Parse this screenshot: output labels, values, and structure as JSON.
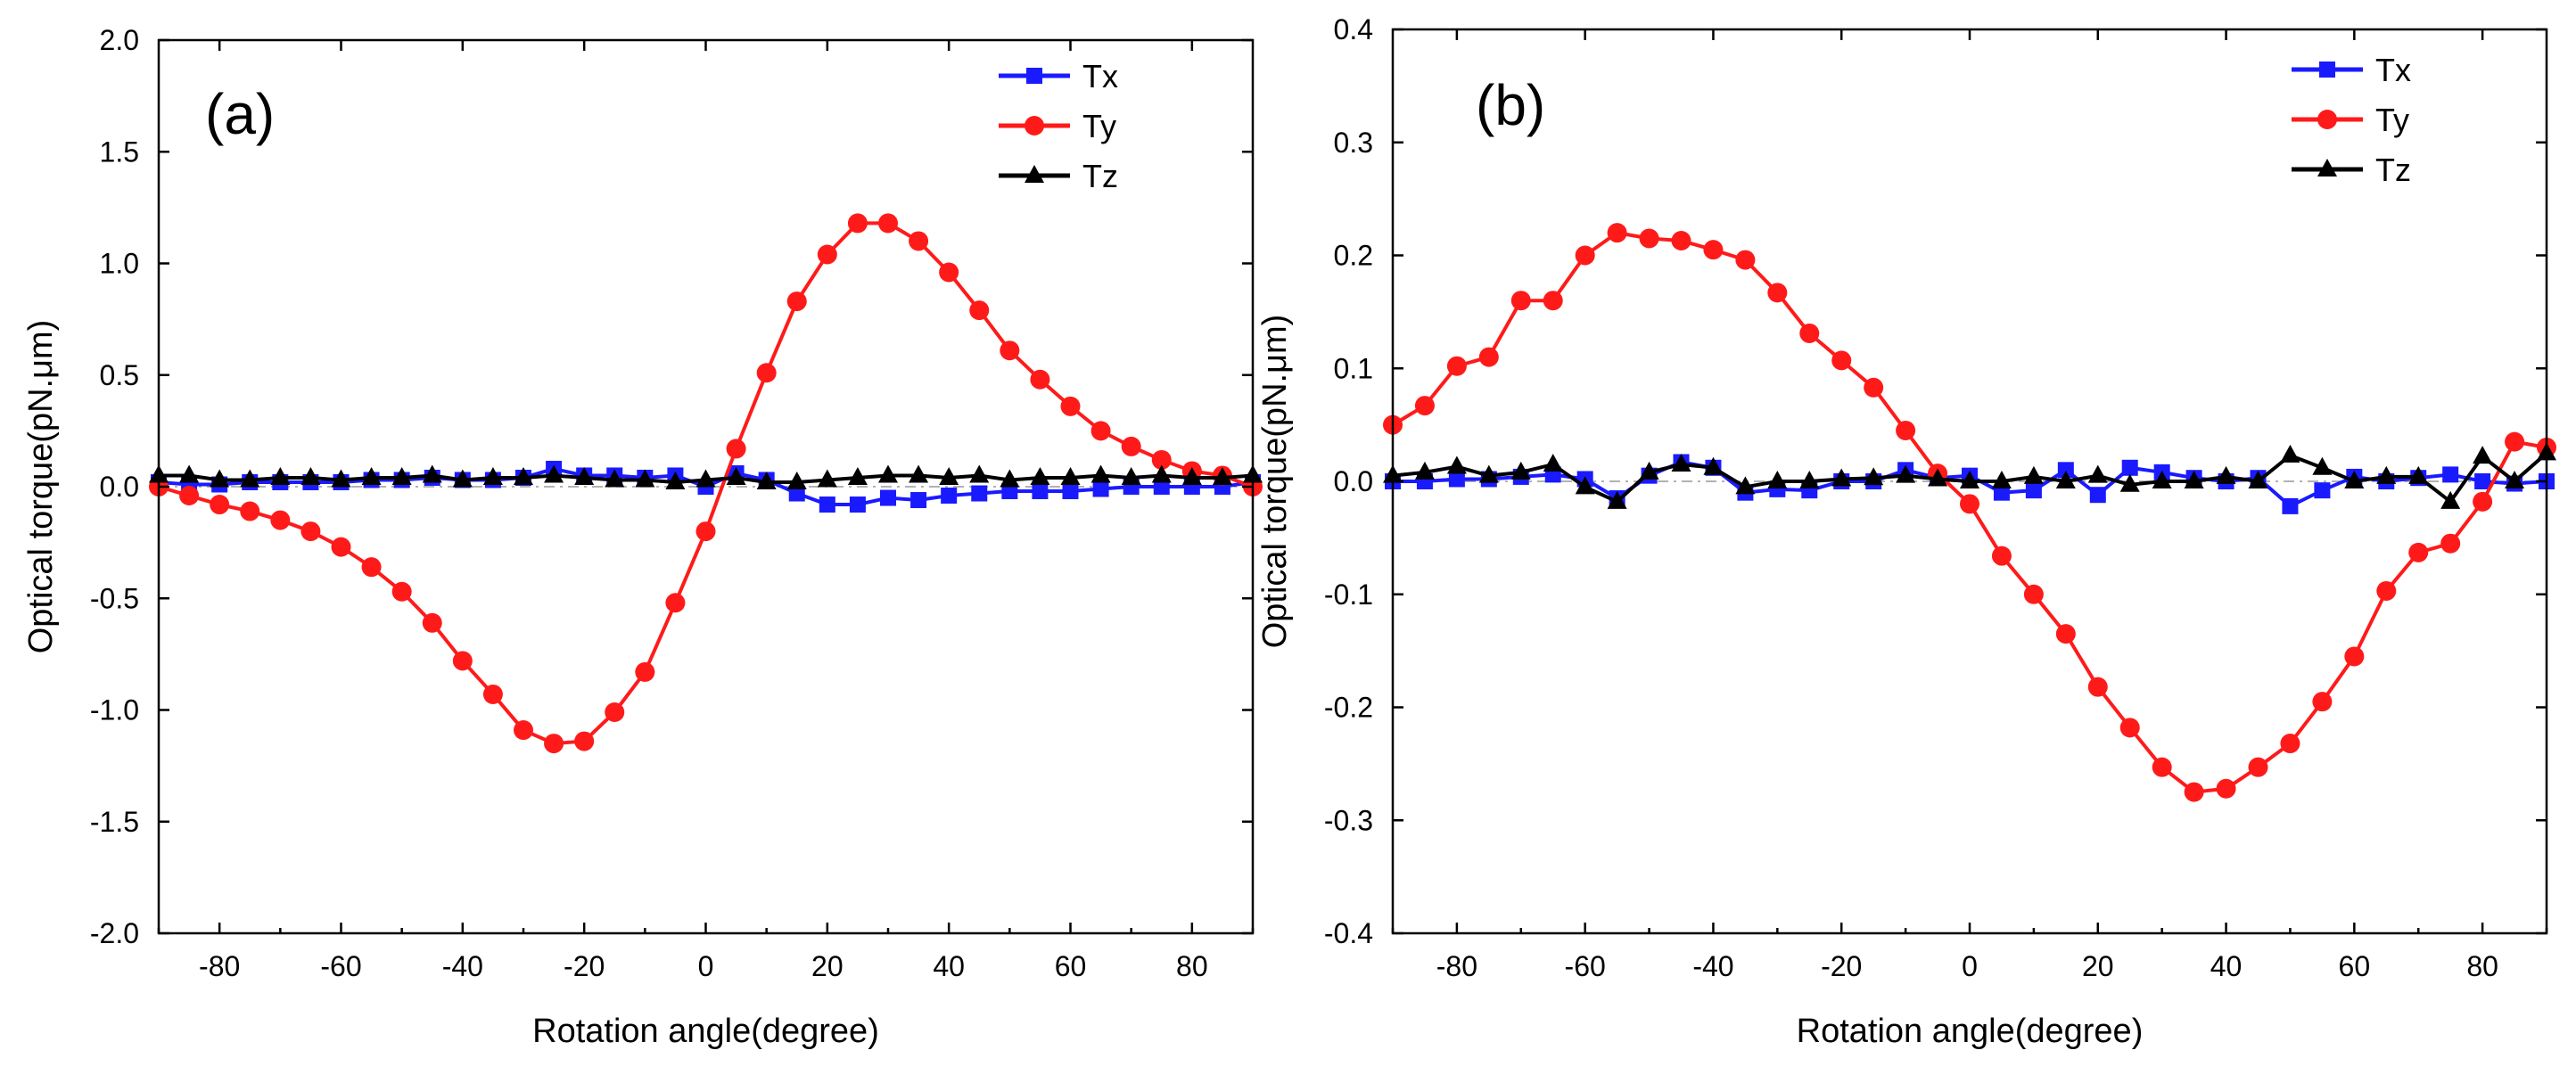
{
  "chart_data": [
    {
      "type": "line",
      "panel_label": "(a)",
      "xlabel": "Rotation angle(degree)",
      "ylabel": "Optical torque(pN.μm)",
      "xlim": [
        -90,
        90
      ],
      "ylim": [
        -2.0,
        2.0
      ],
      "xticks": [
        -80,
        -60,
        -40,
        -20,
        0,
        20,
        40,
        60,
        80
      ],
      "yticks": [
        -2.0,
        -1.5,
        -1.0,
        -0.5,
        0.0,
        0.5,
        1.0,
        1.5,
        2.0
      ],
      "ytick_labels": [
        "-2.0",
        "-1.5",
        "-1.0",
        "-0.5",
        "0.0",
        "0.5",
        "1.0",
        "1.5",
        "2.0"
      ],
      "legend_position": "top-right",
      "x": [
        -90,
        -85,
        -80,
        -75,
        -70,
        -65,
        -60,
        -55,
        -50,
        -45,
        -40,
        -35,
        -30,
        -25,
        -20,
        -15,
        -10,
        -5,
        0,
        5,
        10,
        15,
        20,
        25,
        30,
        35,
        40,
        45,
        50,
        55,
        60,
        65,
        70,
        75,
        80,
        85,
        90
      ],
      "series": [
        {
          "name": "Tx",
          "color": "#1a1aff",
          "marker": "square",
          "values": [
            0.02,
            0.01,
            0.01,
            0.02,
            0.02,
            0.02,
            0.02,
            0.03,
            0.03,
            0.04,
            0.03,
            0.03,
            0.04,
            0.08,
            0.05,
            0.05,
            0.04,
            0.05,
            0.0,
            0.06,
            0.03,
            -0.03,
            -0.08,
            -0.08,
            -0.05,
            -0.06,
            -0.04,
            -0.03,
            -0.02,
            -0.02,
            -0.02,
            -0.01,
            0.0,
            0.0,
            0.0,
            0.0,
            0.02
          ]
        },
        {
          "name": "Ty",
          "color": "#ff1a1a",
          "marker": "circle",
          "values": [
            0.0,
            -0.04,
            -0.08,
            -0.11,
            -0.15,
            -0.2,
            -0.27,
            -0.36,
            -0.47,
            -0.61,
            -0.78,
            -0.93,
            -1.09,
            -1.15,
            -1.14,
            -1.01,
            -0.83,
            -0.52,
            -0.2,
            0.17,
            0.51,
            0.83,
            1.04,
            1.18,
            1.18,
            1.1,
            0.96,
            0.79,
            0.61,
            0.48,
            0.36,
            0.25,
            0.18,
            0.12,
            0.07,
            0.05,
            0.0
          ]
        },
        {
          "name": "Tz",
          "color": "#000000",
          "marker": "triangle",
          "values": [
            0.05,
            0.05,
            0.03,
            0.03,
            0.04,
            0.04,
            0.03,
            0.04,
            0.04,
            0.05,
            0.03,
            0.04,
            0.04,
            0.05,
            0.04,
            0.03,
            0.03,
            0.02,
            0.03,
            0.04,
            0.02,
            0.02,
            0.03,
            0.04,
            0.05,
            0.05,
            0.04,
            0.05,
            0.03,
            0.04,
            0.04,
            0.05,
            0.04,
            0.05,
            0.04,
            0.04,
            0.05
          ]
        }
      ]
    },
    {
      "type": "line",
      "panel_label": "(b)",
      "xlabel": "Rotation angle(degree)",
      "ylabel": "Optical torque(pN.μm)",
      "xlim": [
        -90,
        90
      ],
      "ylim": [
        -0.4,
        0.4
      ],
      "xticks": [
        -80,
        -60,
        -40,
        -20,
        0,
        20,
        40,
        60,
        80
      ],
      "yticks": [
        -0.4,
        -0.3,
        -0.2,
        -0.1,
        0.0,
        0.1,
        0.2,
        0.3,
        0.4
      ],
      "ytick_labels": [
        "-0.4",
        "-0.3",
        "-0.2",
        "-0.1",
        "0.0",
        "0.1",
        "0.2",
        "0.3",
        "0.4"
      ],
      "legend_position": "top-right",
      "x": [
        -90,
        -85,
        -80,
        -75,
        -70,
        -65,
        -60,
        -55,
        -50,
        -45,
        -40,
        -35,
        -30,
        -25,
        -20,
        -15,
        -10,
        -5,
        0,
        5,
        10,
        15,
        20,
        25,
        30,
        35,
        40,
        45,
        50,
        55,
        60,
        65,
        70,
        75,
        80,
        85,
        90
      ],
      "series": [
        {
          "name": "Tx",
          "color": "#1a1aff",
          "marker": "square",
          "values": [
            0.0,
            0.0,
            0.002,
            0.002,
            0.004,
            0.006,
            0.002,
            -0.015,
            0.005,
            0.017,
            0.012,
            -0.01,
            -0.007,
            -0.008,
            0.0,
            0.0,
            0.01,
            0.003,
            0.005,
            -0.01,
            -0.008,
            0.01,
            -0.012,
            0.012,
            0.008,
            0.003,
            0.0,
            0.003,
            -0.022,
            -0.008,
            0.004,
            0.0,
            0.003,
            0.006,
            0.0,
            -0.002,
            0.0
          ]
        },
        {
          "name": "Ty",
          "color": "#ff1a1a",
          "marker": "circle",
          "values": [
            0.05,
            0.067,
            0.102,
            0.11,
            0.16,
            0.16,
            0.2,
            0.22,
            0.215,
            0.213,
            0.205,
            0.196,
            0.167,
            0.131,
            0.107,
            0.083,
            0.045,
            0.007,
            -0.02,
            -0.066,
            -0.1,
            -0.135,
            -0.182,
            -0.218,
            -0.253,
            -0.275,
            -0.272,
            -0.253,
            -0.232,
            -0.195,
            -0.155,
            -0.097,
            -0.063,
            -0.055,
            -0.018,
            0.035,
            0.03
          ]
        },
        {
          "name": "Tz",
          "color": "#000000",
          "marker": "triangle",
          "values": [
            0.005,
            0.008,
            0.013,
            0.005,
            0.008,
            0.015,
            -0.005,
            -0.018,
            0.008,
            0.015,
            0.012,
            -0.005,
            0.0,
            0.0,
            0.002,
            0.003,
            0.005,
            0.002,
            0.0,
            0.0,
            0.004,
            0.0,
            0.005,
            -0.003,
            0.0,
            0.0,
            0.004,
            0.0,
            0.023,
            0.012,
            0.0,
            0.004,
            0.004,
            -0.018,
            0.022,
            0.0,
            0.025
          ]
        }
      ]
    }
  ]
}
